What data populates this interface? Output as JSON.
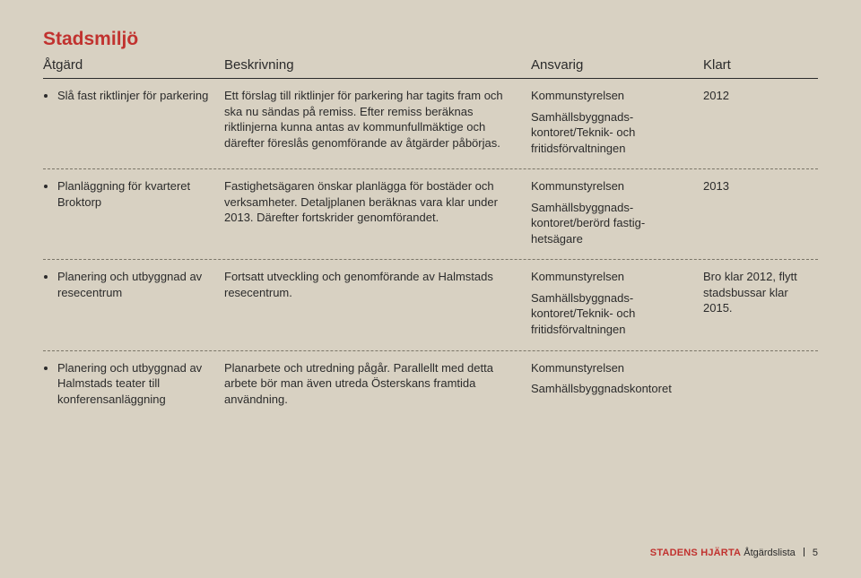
{
  "colors": {
    "accent": "#c1322f",
    "text": "#2b2b2b",
    "background": "#d8d1c2",
    "dash": "#7a7568"
  },
  "heading": "Stadsmiljö",
  "columns": {
    "atgard": "Åtgärd",
    "beskrivning": "Beskrivning",
    "ansvarig": "Ansvarig",
    "klart": "Klart"
  },
  "rows": [
    {
      "atgard": "Slå fast riktlinjer för parkering",
      "beskrivning": "Ett förslag till riktlinjer för parkering har tagits fram och ska nu sändas på remiss. Efter remiss beräknas riktlinjerna kunna antas av kommunfullmäktige och därefter föreslås genomförande av åtgärder påbörjas.",
      "ansvarig1": "Kommunstyrelsen",
      "ansvarig2": "Samhällsbyggnads­kontoret/Teknik- och fritidsförvaltningen",
      "klart": "2012"
    },
    {
      "atgard": "Planläggning för kvarteret Broktorp",
      "beskrivning": "Fastighetsägaren önskar planlägga för bostäder och verksamheter. Detaljplanen beräknas vara klar under 2013. Därefter fortskrider genomförandet.",
      "ansvarig1": "Kommunstyrelsen",
      "ansvarig2": "Samhällsbyggnads­kontoret/berörd fastig­hetsägare",
      "klart": "2013"
    },
    {
      "atgard": "Planering och utbyggnad av resecentrum",
      "beskrivning": "Fortsatt utveckling och genomförande av Halmstads resecentrum.",
      "ansvarig1": "Kommunstyrelsen",
      "ansvarig2": "Samhällsbyggnads­kontoret/Teknik- och fritidsförvaltningen",
      "klart": "Bro klar 2012, flytt stadsbussar klar 2015."
    },
    {
      "atgard": "Planering och utbyggnad av Halmstads teater till konferens­anläggning",
      "beskrivning": "Planarbete och utredning pågår. Parallellt med detta arbete bör man även utreda Österskans framtida användning.",
      "ansvarig1": "Kommunstyrelsen",
      "ansvarig2": "Samhällsbyggnads­kontoret",
      "klart": ""
    }
  ],
  "footer": {
    "brand": "STADENS HJÄRTA",
    "sub": "Åtgärdslista",
    "page": "5"
  }
}
